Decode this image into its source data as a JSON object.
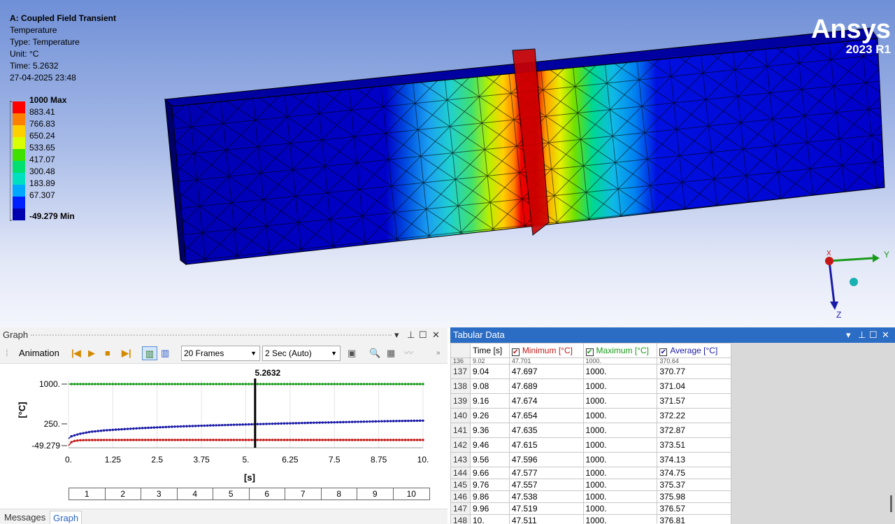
{
  "viewport": {
    "info": {
      "title": "A: Coupled Field Transient",
      "result": "Temperature",
      "type": "Type: Temperature",
      "unit": "Unit: °C",
      "time": "Time: 5.2632",
      "timestamp": "27-04-2025 23:48"
    },
    "legend": {
      "labels": [
        "1000 Max",
        "883.41",
        "766.83",
        "650.24",
        "533.65",
        "417.07",
        "300.48",
        "183.89",
        "67.307",
        "-49.279 Min"
      ],
      "colors": [
        "#ff0000",
        "#ff8000",
        "#ffd000",
        "#d8ff00",
        "#40e000",
        "#00e070",
        "#00e0c0",
        "#00a8ff",
        "#0020ff",
        "#0000b0"
      ]
    },
    "logo": {
      "word": "Ansys",
      "version": "2023 R1"
    },
    "triad": {
      "x": "X",
      "y": "Y",
      "z": "Z"
    }
  },
  "graph": {
    "panel_title": "Graph",
    "toolbar": {
      "animation_label": "Animation",
      "frames": "20 Frames",
      "duration": "2 Sec (Auto)"
    },
    "tabs": {
      "messages": "Messages",
      "graph": "Graph"
    }
  },
  "chart_data": {
    "type": "line",
    "title": "",
    "xlabel": "[s]",
    "ylabel": "[°C]",
    "xlim": [
      0,
      10
    ],
    "ylim": [
      -49.279,
      1000
    ],
    "x_ticks": [
      "0.",
      "1.25",
      "2.5",
      "3.75",
      "5.",
      "6.25",
      "7.5",
      "8.75",
      "10."
    ],
    "y_ticks": [
      "1000.",
      "250.",
      "-49.279"
    ],
    "cursor": {
      "x": 5.2632,
      "label": "5.2632"
    },
    "frame_labels": [
      "1",
      "2",
      "3",
      "4",
      "5",
      "6",
      "7",
      "8",
      "9",
      "10"
    ],
    "series": [
      {
        "color": "#1a9a1a",
        "x": [
          0,
          10
        ],
        "y": [
          1000,
          1000
        ]
      },
      {
        "color": "#c41818",
        "x": [
          0,
          0.08,
          0.16,
          0.3,
          0.5,
          1,
          2,
          4,
          6,
          8,
          10
        ],
        "y": [
          -49.279,
          10,
          30,
          42,
          45.5,
          47,
          47.8,
          48,
          47.9,
          47.7,
          47.511
        ]
      },
      {
        "color": "#1a1aa8",
        "x": [
          0,
          0.08,
          0.3,
          0.6,
          1,
          1.5,
          2,
          3,
          4,
          5,
          6,
          7,
          8,
          9,
          10
        ],
        "y": [
          70,
          110,
          150,
          185,
          210,
          230,
          248,
          275,
          295,
          312,
          328,
          342,
          355,
          368,
          376.81
        ]
      }
    ]
  },
  "tabular": {
    "panel_title": "Tabular Data",
    "headers": {
      "time": "Time [s]",
      "min": "Minimum [°C]",
      "max": "Maximum [°C]",
      "avg": "Average [°C]"
    },
    "partial_row": [
      "136",
      "9.02",
      "47.701",
      "1000.",
      "370.64"
    ],
    "rows": [
      [
        "137",
        "9.04",
        "47.697",
        "1000.",
        "370.77"
      ],
      [
        "138",
        "9.08",
        "47.689",
        "1000.",
        "371.04"
      ],
      [
        "139",
        "9.16",
        "47.674",
        "1000.",
        "371.57"
      ],
      [
        "140",
        "9.26",
        "47.654",
        "1000.",
        "372.22"
      ],
      [
        "141",
        "9.36",
        "47.635",
        "1000.",
        "372.87"
      ],
      [
        "142",
        "9.46",
        "47.615",
        "1000.",
        "373.51"
      ],
      [
        "143",
        "9.56",
        "47.596",
        "1000.",
        "374.13"
      ],
      [
        "144",
        "9.66",
        "47.577",
        "1000.",
        "374.75"
      ],
      [
        "145",
        "9.76",
        "47.557",
        "1000.",
        "375.37"
      ],
      [
        "146",
        "9.86",
        "47.538",
        "1000.",
        "375.98"
      ],
      [
        "147",
        "9.96",
        "47.519",
        "1000.",
        "376.57"
      ],
      [
        "148",
        "10.",
        "47.511",
        "1000.",
        "376.81"
      ]
    ]
  }
}
